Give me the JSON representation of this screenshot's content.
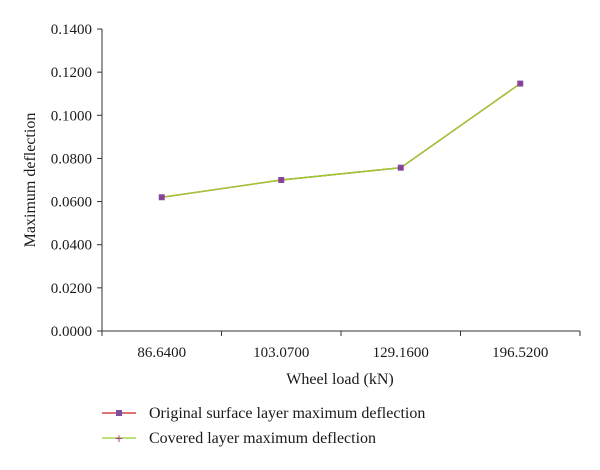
{
  "chart_data": {
    "type": "line",
    "categories": [
      "86.6400",
      "103.0700",
      "129.1600",
      "196.5200"
    ],
    "series": [
      {
        "name": "Original surface layer maximum deflection",
        "values": [
          0.062,
          0.07,
          0.0757,
          0.1147
        ],
        "line_color": "#cc2222",
        "marker": "square",
        "marker_color": "#7b4fa0"
      },
      {
        "name": "Covered layer maximum deflection",
        "values": [
          0.062,
          0.07,
          0.0757,
          0.1147
        ],
        "line_color": "#9acd32",
        "marker": "plus",
        "marker_color": "#a0308a"
      }
    ],
    "xlabel": "Wheel load (kN)",
    "ylabel": "Maximum deflection",
    "ylim": [
      0,
      0.14
    ],
    "yticks": [
      "0.0000",
      "0.0200",
      "0.0400",
      "0.0600",
      "0.0800",
      "0.1000",
      "0.1200",
      "0.1400"
    ],
    "grid": false,
    "legend_position": "bottom"
  }
}
